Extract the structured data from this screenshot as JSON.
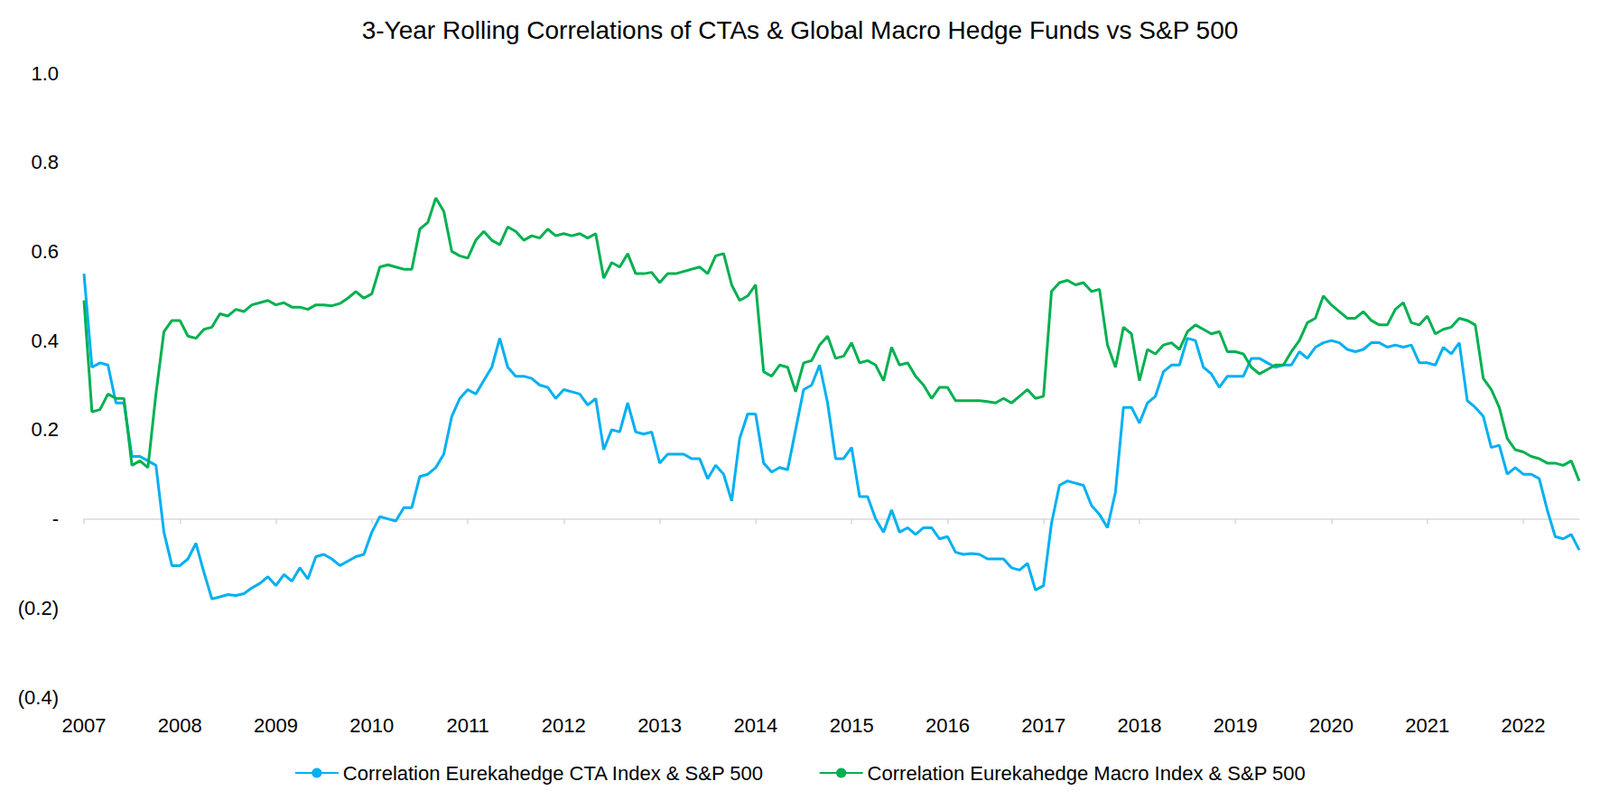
{
  "chart_data": {
    "type": "line",
    "title": "3-Year Rolling Correlations of CTAs & Global Macro Hedge Funds vs S&P 500",
    "categories": [
      "2007",
      null,
      null,
      null,
      null,
      null,
      null,
      null,
      null,
      null,
      null,
      null,
      "2008",
      null,
      null,
      null,
      null,
      null,
      null,
      null,
      null,
      null,
      null,
      null,
      "2009",
      null,
      null,
      null,
      null,
      null,
      null,
      null,
      null,
      null,
      null,
      null,
      "2010",
      null,
      null,
      null,
      null,
      null,
      null,
      null,
      null,
      null,
      null,
      null,
      "2011",
      null,
      null,
      null,
      null,
      null,
      null,
      null,
      null,
      null,
      null,
      null,
      "2012",
      null,
      null,
      null,
      null,
      null,
      null,
      null,
      null,
      null,
      null,
      null,
      "2013",
      null,
      null,
      null,
      null,
      null,
      null,
      null,
      null,
      null,
      null,
      null,
      "2014",
      null,
      null,
      null,
      null,
      null,
      null,
      null,
      null,
      null,
      null,
      null,
      "2015",
      null,
      null,
      null,
      null,
      null,
      null,
      null,
      null,
      null,
      null,
      null,
      "2016",
      null,
      null,
      null,
      null,
      null,
      null,
      null,
      null,
      null,
      null,
      null,
      "2017",
      null,
      null,
      null,
      null,
      null,
      null,
      null,
      null,
      null,
      null,
      null,
      "2018",
      null,
      null,
      null,
      null,
      null,
      null,
      null,
      null,
      null,
      null,
      null,
      "2019",
      null,
      null,
      null,
      null,
      null,
      null,
      null,
      null,
      null,
      null,
      null,
      "2020",
      null,
      null,
      null,
      null,
      null,
      null,
      null,
      null,
      null,
      null,
      null,
      "2021",
      null,
      null,
      null,
      null,
      null,
      null,
      null,
      null,
      null,
      null,
      null,
      "2022",
      null,
      null,
      null,
      null,
      null,
      null,
      null
    ],
    "series": [
      {
        "name": "Correlation Eurekahedge CTA Index & S&P 500",
        "color": "#00b0f0",
        "values": [
          0.55,
          0.34,
          0.35,
          0.345,
          0.26,
          0.26,
          0.14,
          0.14,
          0.13,
          0.12,
          -0.03,
          -0.105,
          -0.105,
          -0.09,
          -0.055,
          -0.12,
          -0.18,
          -0.175,
          -0.17,
          -0.172,
          -0.168,
          -0.155,
          -0.145,
          -0.13,
          -0.15,
          -0.125,
          -0.14,
          -0.11,
          -0.135,
          -0.085,
          -0.08,
          -0.09,
          -0.105,
          -0.095,
          -0.085,
          -0.08,
          -0.03,
          0.005,
          0.0,
          -0.005,
          0.025,
          0.025,
          0.095,
          0.1,
          0.115,
          0.145,
          0.23,
          0.27,
          0.29,
          0.28,
          0.31,
          0.34,
          0.405,
          0.34,
          0.32,
          0.32,
          0.315,
          0.3,
          0.295,
          0.27,
          0.29,
          0.285,
          0.28,
          0.255,
          0.27,
          0.155,
          0.2,
          0.195,
          0.26,
          0.195,
          0.19,
          0.195,
          0.125,
          0.145,
          0.145,
          0.145,
          0.135,
          0.135,
          0.09,
          0.12,
          0.1,
          0.04,
          0.18,
          0.235,
          0.235,
          0.125,
          0.105,
          0.115,
          0.11,
          0.2,
          0.29,
          0.3,
          0.345,
          0.26,
          0.135,
          0.135,
          0.16,
          0.05,
          0.05,
          0.0,
          -0.03,
          0.02,
          -0.03,
          -0.02,
          -0.035,
          -0.02,
          -0.02,
          -0.045,
          -0.04,
          -0.075,
          -0.08,
          -0.078,
          -0.08,
          -0.09,
          -0.09,
          -0.09,
          -0.11,
          -0.115,
          -0.1,
          -0.16,
          -0.15,
          -0.01,
          0.075,
          0.085,
          0.08,
          0.075,
          0.03,
          0.01,
          -0.02,
          0.06,
          0.25,
          0.25,
          0.215,
          0.26,
          0.275,
          0.33,
          0.345,
          0.345,
          0.405,
          0.4,
          0.34,
          0.325,
          0.295,
          0.32,
          0.32,
          0.32,
          0.36,
          0.36,
          0.35,
          0.34,
          0.345,
          0.345,
          0.375,
          0.36,
          0.385,
          0.395,
          0.4,
          0.395,
          0.38,
          0.375,
          0.38,
          0.395,
          0.395,
          0.385,
          0.39,
          0.385,
          0.39,
          0.35,
          0.35,
          0.345,
          0.385,
          0.37,
          0.395,
          0.265,
          0.25,
          0.23,
          0.16,
          0.165,
          0.1,
          0.115,
          0.1,
          0.1,
          0.09,
          0.02,
          -0.04,
          -0.045,
          -0.035,
          -0.07
        ]
      },
      {
        "name": "Correlation Eurekahedge Macro Index & S&P 500",
        "color": "#00b050",
        "values": [
          0.49,
          0.24,
          0.245,
          0.28,
          0.27,
          0.27,
          0.12,
          0.13,
          0.115,
          0.28,
          0.42,
          0.445,
          0.445,
          0.41,
          0.405,
          0.425,
          0.43,
          0.46,
          0.455,
          0.47,
          0.465,
          0.48,
          0.485,
          0.49,
          0.48,
          0.485,
          0.475,
          0.475,
          0.47,
          0.48,
          0.48,
          0.478,
          0.483,
          0.495,
          0.51,
          0.495,
          0.505,
          0.565,
          0.57,
          0.565,
          0.56,
          0.56,
          0.65,
          0.665,
          0.72,
          0.69,
          0.6,
          0.59,
          0.585,
          0.625,
          0.645,
          0.625,
          0.615,
          0.655,
          0.645,
          0.625,
          0.635,
          0.63,
          0.65,
          0.635,
          0.64,
          0.635,
          0.64,
          0.63,
          0.64,
          0.54,
          0.575,
          0.565,
          0.595,
          0.55,
          0.55,
          0.553,
          0.53,
          0.55,
          0.55,
          0.555,
          0.56,
          0.565,
          0.55,
          0.59,
          0.595,
          0.525,
          0.49,
          0.5,
          0.525,
          0.33,
          0.32,
          0.345,
          0.34,
          0.285,
          0.35,
          0.355,
          0.39,
          0.41,
          0.36,
          0.365,
          0.395,
          0.35,
          0.355,
          0.345,
          0.31,
          0.385,
          0.345,
          0.35,
          0.32,
          0.3,
          0.27,
          0.295,
          0.295,
          0.265,
          0.265,
          0.265,
          0.265,
          0.263,
          0.26,
          0.27,
          0.26,
          0.275,
          0.29,
          0.27,
          0.275,
          0.51,
          0.53,
          0.535,
          0.525,
          0.53,
          0.51,
          0.515,
          0.39,
          0.34,
          0.43,
          0.415,
          0.31,
          0.38,
          0.37,
          0.39,
          0.395,
          0.38,
          0.42,
          0.435,
          0.425,
          0.415,
          0.42,
          0.375,
          0.375,
          0.37,
          0.34,
          0.325,
          0.335,
          0.345,
          0.345,
          0.375,
          0.4,
          0.44,
          0.45,
          0.5,
          0.48,
          0.465,
          0.45,
          0.45,
          0.465,
          0.445,
          0.435,
          0.435,
          0.47,
          0.485,
          0.44,
          0.435,
          0.455,
          0.415,
          0.425,
          0.43,
          0.45,
          0.445,
          0.435,
          0.315,
          0.29,
          0.25,
          0.18,
          0.155,
          0.15,
          0.14,
          0.135,
          0.125,
          0.125,
          0.12,
          0.13,
          0.085
        ]
      }
    ],
    "ylim": [
      -0.4,
      1.0
    ],
    "yticks": [
      {
        "value": -0.4,
        "label": "(0.4)"
      },
      {
        "value": -0.2,
        "label": "(0.2)"
      },
      {
        "value": 0,
        "label": "-"
      },
      0.2,
      0.4,
      0.6,
      0.8,
      {
        "value": 1.0,
        "label": "1.0"
      }
    ],
    "grid": false,
    "legend": "bottom"
  }
}
